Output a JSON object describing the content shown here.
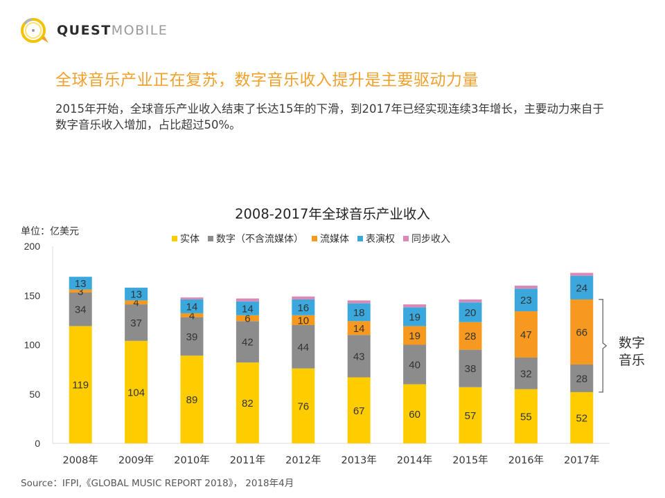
{
  "brand": {
    "name_bold": "QUEST",
    "name_light": "MOBILE"
  },
  "headline": "全球音乐产业正在复苏，数字音乐收入提升是主要驱动力量",
  "description": "2015年开始，全球音乐产业收入结束了长达15年的下滑，到2017年已经实现连续3年增长，主要动力来自于数字音乐收入增加，占比超过50%。",
  "colors": {
    "accent": "#f0a12c",
    "physical": "#ffcc00",
    "digital": "#8c8c8c",
    "streaming": "#f7991e",
    "performance": "#3aa8dc",
    "sync": "#d889b5"
  },
  "chart_data": {
    "type": "bar",
    "stacked": true,
    "title": "2008-2017年全球音乐产业收入",
    "unit_label": "单位：亿美元",
    "xlabel": "",
    "ylabel": "亿美元",
    "ylim": [
      0,
      200
    ],
    "yticks": [
      0,
      50,
      100,
      150,
      200
    ],
    "grid": false,
    "legend_position": "top",
    "categories": [
      "2008年",
      "2009年",
      "2010年",
      "2011年",
      "2012年",
      "2013年",
      "2014年",
      "2015年",
      "2016年",
      "2017年"
    ],
    "series": [
      {
        "name": "实体",
        "color": "#ffcc00",
        "values": [
          119,
          104,
          89,
          82,
          76,
          67,
          60,
          57,
          55,
          52
        ],
        "labels": true
      },
      {
        "name": "数字（不含流媒体）",
        "color": "#8c8c8c",
        "values": [
          34,
          37,
          39,
          42,
          44,
          43,
          40,
          38,
          32,
          28
        ],
        "labels": true
      },
      {
        "name": "流媒体",
        "color": "#f7991e",
        "values": [
          3,
          4,
          4,
          6,
          10,
          14,
          19,
          28,
          47,
          66
        ],
        "labels": true
      },
      {
        "name": "表演权",
        "color": "#3aa8dc",
        "values": [
          13,
          13,
          14,
          14,
          16,
          18,
          19,
          20,
          23,
          24
        ],
        "labels": true
      },
      {
        "name": "同步收入",
        "color": "#d889b5",
        "values": [
          0,
          0,
          2,
          3,
          3,
          3,
          3,
          3,
          3,
          3
        ],
        "labels": false
      }
    ],
    "annotation": {
      "text_line1": "数字",
      "text_line2": "音乐",
      "spans_category": "2017年",
      "spans_series": [
        "数字（不含流媒体）",
        "流媒体"
      ]
    }
  },
  "source": "Source：IFPI,《GLOBAL MUSIC REPORT 2018》， 2018年4月"
}
